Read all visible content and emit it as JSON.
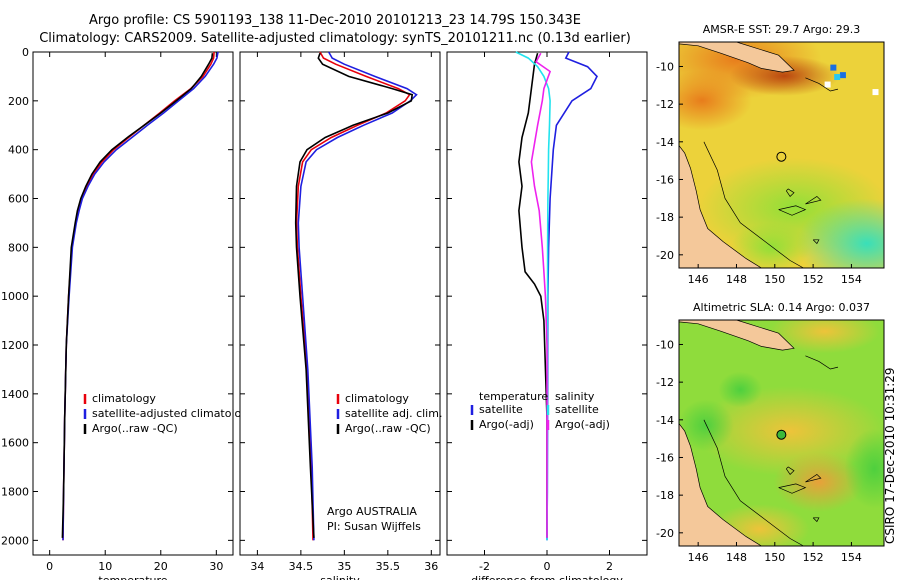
{
  "header": {
    "line1": "Argo profile: CS 5901193_138 11-Dec-2010 20101213_23 14.79S 150.343E",
    "line2": "Climatology: CARS2009. Satellite-adjusted climatology: synTS_20101211.nc (0.13d earlier)"
  },
  "footer": {
    "credit": "CSIRO 17-Dec-2010 10:31:29"
  },
  "colors": {
    "climatology": "#e8000b",
    "satellite": "#1f1fe0",
    "argo": "#000000",
    "salinity_sat": "#22e3ee",
    "salinity_argo": "#ee22ee"
  },
  "chart_data": [
    {
      "id": "temperature",
      "type": "line",
      "xlabel": "temperature",
      "xlim": [
        -3,
        33
      ],
      "xticks": [
        0,
        10,
        20,
        30
      ],
      "xticklabels": [
        "0",
        "10",
        "20",
        "30"
      ],
      "ylim": [
        2060,
        0
      ],
      "yticks": [
        0,
        200,
        400,
        600,
        800,
        1000,
        1200,
        1400,
        1600,
        1800,
        2000
      ],
      "yticklabels": [
        "0",
        "200",
        "400",
        "600",
        "800",
        "1000",
        "1200",
        "1400",
        "1600",
        "1800",
        "2000"
      ],
      "legend": {
        "position": "bottom-right",
        "entries": [
          "climatology",
          "satellite-adjusted climatology",
          "Argo(..raw -QC)"
        ]
      },
      "series": [
        {
          "name": "climatology",
          "color": "#e8000b",
          "x": [
            29.6,
            29.5,
            29.0,
            27.6,
            25.4,
            22.5,
            19.8,
            17.0,
            14.2,
            11.5,
            9.4,
            7.8,
            6.7,
            5.8,
            5.2,
            4.7,
            4.0,
            3.4,
            3.0,
            2.7,
            2.5,
            2.4
          ],
          "y": [
            0,
            25,
            50,
            100,
            150,
            200,
            250,
            300,
            350,
            400,
            450,
            500,
            550,
            600,
            650,
            700,
            800,
            1000,
            1200,
            1500,
            1800,
            2000
          ]
        },
        {
          "name": "satellite-adjusted climatology",
          "color": "#1f1fe0",
          "x": [
            30.3,
            30.1,
            29.5,
            28.0,
            25.9,
            23.2,
            20.5,
            17.6,
            14.8,
            12.0,
            9.8,
            8.1,
            6.9,
            5.9,
            5.3,
            4.8,
            4.1,
            3.5,
            3.0,
            2.7,
            2.5,
            2.4
          ],
          "y": [
            0,
            25,
            50,
            100,
            150,
            200,
            250,
            300,
            350,
            400,
            450,
            500,
            550,
            600,
            650,
            700,
            800,
            1000,
            1200,
            1500,
            1800,
            2000
          ]
        },
        {
          "name": "Argo(..raw -QC)",
          "color": "#000000",
          "x": [
            29.3,
            29.2,
            28.6,
            27.3,
            25.5,
            22.8,
            20.0,
            17.0,
            14.0,
            11.2,
            9.1,
            7.6,
            6.5,
            5.6,
            5.0,
            4.6,
            3.9,
            3.4,
            3.0,
            2.7,
            2.5,
            2.3
          ],
          "y": [
            5,
            25,
            50,
            100,
            150,
            200,
            250,
            300,
            350,
            400,
            450,
            500,
            550,
            600,
            650,
            700,
            800,
            1000,
            1200,
            1500,
            1800,
            1990
          ]
        }
      ]
    },
    {
      "id": "salinity",
      "type": "line",
      "xlabel": "salinity",
      "xlim": [
        33.8,
        36.1
      ],
      "xticks": [
        34,
        34.5,
        35,
        35.5,
        36
      ],
      "xticklabels": [
        "34",
        "34.5",
        "35",
        "35.5",
        "36"
      ],
      "ylim": [
        2060,
        0
      ],
      "legend": {
        "position": "bottom-right",
        "entries": [
          "climatology",
          "satellite adj. clim.",
          "Argo(..raw -QC)"
        ]
      },
      "annotation": {
        "line1": "Argo AUSTRALIA",
        "line2": "PI: Susan Wijffels"
      },
      "series": [
        {
          "name": "climatology",
          "color": "#e8000b",
          "x": [
            34.72,
            34.76,
            34.9,
            35.25,
            35.62,
            35.75,
            35.7,
            35.48,
            35.15,
            34.85,
            34.62,
            34.52,
            34.47,
            34.45,
            34.46,
            34.5,
            34.57,
            34.62,
            34.64
          ],
          "y": [
            0,
            25,
            50,
            100,
            150,
            175,
            200,
            250,
            300,
            350,
            400,
            450,
            550,
            700,
            800,
            1000,
            1300,
            1700,
            2000
          ]
        },
        {
          "name": "satellite adj. clim.",
          "color": "#1f1fe0",
          "x": [
            34.82,
            34.86,
            35.0,
            35.35,
            35.72,
            35.83,
            35.76,
            35.55,
            35.22,
            34.92,
            34.68,
            34.56,
            34.5,
            34.47,
            34.48,
            34.52,
            34.58,
            34.63,
            34.65
          ],
          "y": [
            0,
            25,
            50,
            100,
            150,
            175,
            200,
            250,
            300,
            350,
            400,
            450,
            550,
            700,
            800,
            1000,
            1300,
            1700,
            2000
          ]
        },
        {
          "name": "Argo(..raw -QC)",
          "color": "#000000",
          "x": [
            34.72,
            34.7,
            34.75,
            35.05,
            35.55,
            35.78,
            35.77,
            35.5,
            35.1,
            34.78,
            34.57,
            34.49,
            34.45,
            34.44,
            34.45,
            34.49,
            34.56,
            34.61,
            34.65
          ],
          "y": [
            5,
            25,
            50,
            100,
            150,
            175,
            200,
            250,
            300,
            350,
            400,
            450,
            550,
            700,
            800,
            1000,
            1300,
            1700,
            1990
          ]
        }
      ]
    },
    {
      "id": "difference",
      "type": "line",
      "xlabel": "difference from climatology",
      "xlim": [
        -3.2,
        3.2
      ],
      "xticks": [
        -2,
        0,
        2
      ],
      "xticklabels": [
        "-2",
        "0",
        "2"
      ],
      "ylim": [
        2060,
        0
      ],
      "legend": {
        "position": "bottom",
        "groups": [
          {
            "title": "temperature",
            "entries": [
              "satellite",
              "Argo(-adj)"
            ]
          },
          {
            "title": "salinity",
            "entries": [
              "satellite",
              "Argo(-adj)"
            ]
          }
        ]
      },
      "series": [
        {
          "name": "temperature satellite",
          "color": "#1f1fe0",
          "x": [
            0.7,
            0.6,
            1.3,
            1.6,
            1.4,
            0.8,
            0.3,
            0.2,
            0.15,
            0.1,
            0.05,
            0.03,
            0.02,
            0.01,
            0.0
          ],
          "y": [
            0,
            25,
            60,
            100,
            150,
            200,
            300,
            400,
            500,
            600,
            800,
            1000,
            1400,
            1800,
            2000
          ]
        },
        {
          "name": "temperature Argo(-adj)",
          "color": "#000000",
          "x": [
            -0.3,
            -0.4,
            -0.5,
            -0.6,
            -0.8,
            -0.9,
            -0.8,
            -0.9,
            -0.8,
            -0.7,
            -0.4,
            -0.2,
            -0.1,
            0.0,
            0.0
          ],
          "y": [
            5,
            50,
            150,
            250,
            350,
            450,
            550,
            650,
            800,
            900,
            950,
            1000,
            1100,
            1500,
            1990
          ]
        },
        {
          "name": "salinity satellite",
          "color": "#22e3ee",
          "x": [
            -1.0,
            -0.6,
            -0.3,
            -0.1,
            0.05,
            0.1,
            0.08,
            0.05,
            0.04,
            0.03,
            0.02,
            0.02,
            0.01,
            0.01,
            0.0
          ],
          "y": [
            0,
            25,
            60,
            100,
            150,
            200,
            300,
            400,
            500,
            600,
            800,
            1000,
            1400,
            1800,
            2000
          ]
        },
        {
          "name": "salinity Argo(-adj)",
          "color": "#ee22ee",
          "x": [
            -0.2,
            -0.35,
            0.1,
            -0.1,
            -0.15,
            -0.3,
            -0.5,
            -0.4,
            -0.25,
            -0.15,
            -0.1,
            -0.05,
            0.0,
            0.0,
            0.0
          ],
          "y": [
            5,
            40,
            80,
            150,
            200,
            300,
            450,
            550,
            650,
            800,
            900,
            1000,
            1200,
            1600,
            1990
          ]
        }
      ]
    },
    {
      "id": "sst-map",
      "type": "heatmap",
      "title": "AMSR-E SST: 29.7 Argo: 29.3",
      "xlim": [
        145,
        155.7
      ],
      "ylim": [
        -20.7,
        -8.7
      ],
      "xticks": [
        146,
        148,
        150,
        152,
        154
      ],
      "xticklabels": [
        "146",
        "148",
        "150",
        "152",
        "154"
      ],
      "yticks": [
        -10,
        -12,
        -14,
        -16,
        -18,
        -20
      ],
      "yticklabels": [
        "-10",
        "-12",
        "-14",
        "-16",
        "-18",
        "-20"
      ],
      "argo_position": {
        "lon": 150.343,
        "lat": -14.79
      },
      "palette_note": "warm (red) north-west to cool (cyan) south-east"
    },
    {
      "id": "sla-map",
      "type": "heatmap",
      "title": "Altimetric SLA: 0.14 Argo: 0.037",
      "xlim": [
        145,
        155.7
      ],
      "ylim": [
        -20.7,
        -8.7
      ],
      "xticks": [
        146,
        148,
        150,
        152,
        154
      ],
      "xticklabels": [
        "146",
        "148",
        "150",
        "152",
        "154"
      ],
      "yticks": [
        -10,
        -12,
        -14,
        -16,
        -18,
        -20
      ],
      "yticklabels": [
        "-10",
        "-12",
        "-14",
        "-16",
        "-18",
        "-20"
      ],
      "argo_position": {
        "lon": 150.343,
        "lat": -14.79
      },
      "palette_note": "green field with yellow-orange highs"
    }
  ]
}
